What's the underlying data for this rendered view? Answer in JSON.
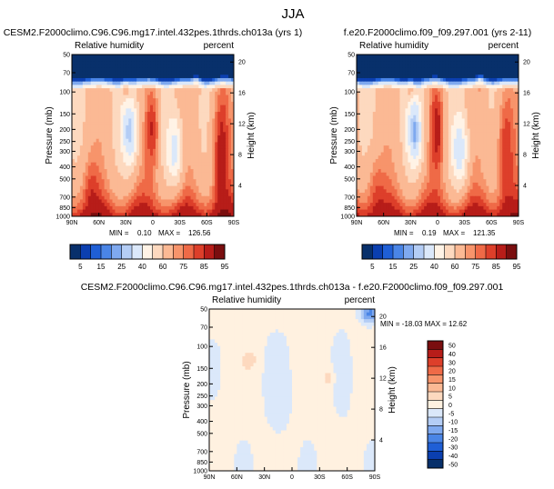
{
  "page_title": "JJA",
  "colors": {
    "levels_main": [
      "#08306b",
      "#0b3fb0",
      "#1f5fd6",
      "#4a85e6",
      "#7fa9ef",
      "#b4cdf5",
      "#dbe8fa",
      "#fff3e6",
      "#fdd9bf",
      "#fbb994",
      "#f7946b",
      "#ef6a47",
      "#dd3f2a",
      "#b71d19",
      "#7a0e0f"
    ],
    "levels_diff": [
      "#08306b",
      "#0b3fb0",
      "#1f5fd6",
      "#4a85e6",
      "#7fa9ef",
      "#b4cdf5",
      "#dbe8fa",
      "#fff1e0",
      "#fdd9bf",
      "#fbb994",
      "#f7946b",
      "#ef6a47",
      "#dd3f2a",
      "#b71d19",
      "#7a0e0f"
    ]
  },
  "chart_data": [
    {
      "type": "heatmap",
      "title": "CESM2.F2000climo.C96.C96.mg17.intel.432pes.1thrds.ch013a (yrs 1)",
      "variable": "Relative humidity",
      "units": "percent",
      "ylabel": "Pressure (mb)",
      "y2label": "Height (km)",
      "x_ticks": [
        "90N",
        "60N",
        "30N",
        "0",
        "30S",
        "60S",
        "90S"
      ],
      "y_ticks": [
        "50",
        "70",
        "100",
        "150",
        "200",
        "250",
        "300",
        "400",
        "500",
        "700",
        "850",
        "1000"
      ],
      "y2_ticks": [
        "20",
        "16",
        "12",
        "8",
        "4"
      ],
      "stats": {
        "min_label": "MIN =",
        "min": "0.10",
        "max_label": "MAX =",
        "max": "126.56"
      },
      "colorbar_labels": [
        "5",
        "15",
        "25",
        "40",
        "60",
        "75",
        "85",
        "95"
      ]
    },
    {
      "type": "heatmap",
      "title": "f.e20.F2000climo.f09_f09.297.001 (yrs 2-11)",
      "variable": "Relative humidity",
      "units": "percent",
      "ylabel": "Pressure (mb)",
      "y2label": "Height (km)",
      "x_ticks": [
        "90N",
        "60N",
        "30N",
        "0",
        "30S",
        "60S",
        "90S"
      ],
      "y_ticks": [
        "50",
        "70",
        "100",
        "150",
        "200",
        "250",
        "300",
        "400",
        "500",
        "700",
        "850",
        "1000"
      ],
      "y2_ticks": [
        "20",
        "16",
        "12",
        "8",
        "4"
      ],
      "stats": {
        "min_label": "MIN =",
        "min": "0.19",
        "max_label": "MAX =",
        "max": "121.35"
      },
      "colorbar_labels": [
        "5",
        "15",
        "25",
        "40",
        "60",
        "75",
        "85",
        "95"
      ]
    },
    {
      "type": "heatmap",
      "title": "CESM2.F2000climo.C96.C96.mg17.intel.432pes.1thrds.ch013a - f.e20.F2000climo.f09_f09.297.001",
      "variable": "Relative humidity",
      "units": "percent",
      "ylabel": "Pressure (mb)",
      "y2label": "Height (km)",
      "x_ticks": [
        "90N",
        "60N",
        "30N",
        "0",
        "30S",
        "60S",
        "90S"
      ],
      "y_ticks": [
        "50",
        "70",
        "100",
        "150",
        "200",
        "250",
        "300",
        "400",
        "500",
        "700",
        "850",
        "1000"
      ],
      "y2_ticks": [
        "20",
        "16",
        "12",
        "8",
        "4"
      ],
      "stats": {
        "text": "MIN = -18.03  MAX = 12.62"
      },
      "colorbar_labels": [
        "50",
        "40",
        "30",
        "20",
        "15",
        "10",
        "5",
        "0",
        "-5",
        "-10",
        "-15",
        "-20",
        "-30",
        "-40",
        "-50"
      ]
    }
  ]
}
